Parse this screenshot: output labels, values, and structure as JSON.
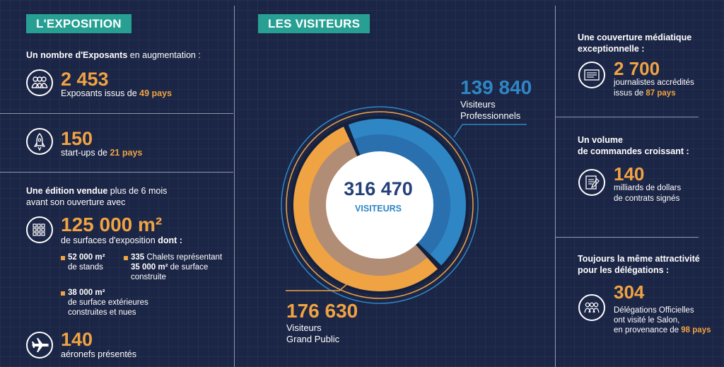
{
  "left": {
    "tag": "L'EXPOSITION",
    "exposants_heading_bold": "Un nombre d'Exposants",
    "exposants_heading_rest": " en augmentation :",
    "exposants_value": "2 453",
    "exposants_desc": "Exposants issus de ",
    "exposants_pays": "49 pays",
    "startups_value": "150",
    "startups_desc": "start-ups de ",
    "startups_pays": "21 pays",
    "edition_bold": "Une édition vendue",
    "edition_rest": " plus de 6 mois",
    "edition_line2": "avant son ouverture avec",
    "surface_value": "125 000 m²",
    "surface_desc": "de surfaces d'exposition ",
    "surface_dont": "dont :",
    "stands_value": "52 000 m²",
    "stands_desc": "de stands",
    "chalets_value": "335",
    "chalets_desc": " Chalets représentant",
    "chalets_surface": "35 000 m²",
    "chalets_surface_rest": " de surface",
    "chalets_line3": "construite",
    "ext_value": "38 000 m²",
    "ext_line1": "de surface extérieures",
    "ext_line2": "construites et nues",
    "aeronefs_value": "140",
    "aeronefs_desc": "aéronefs présentés"
  },
  "center": {
    "tag": "LES VISITEURS"
  },
  "right": {
    "media_heading": "Une couverture médiatique exceptionnelle :",
    "media_value": "2 700",
    "media_line1": "journalistes accrédités",
    "media_line2": "issus de ",
    "media_pays": "87 pays",
    "cmd_heading1": "Un volume",
    "cmd_heading2": "de commandes croissant :",
    "cmd_value": "140",
    "cmd_line1": "milliards de dollars",
    "cmd_line2": "de contrats signés",
    "deleg_heading1": "Toujours la même attractivité",
    "deleg_heading2": "pour les délégations :",
    "deleg_value": "304",
    "deleg_line1": "Délégations Officielles",
    "deleg_line2": "ont visité le Salon,",
    "deleg_line3": "en provenance de ",
    "deleg_pays": "98 pays"
  },
  "colors": {
    "background": "#1b2545",
    "accent_orange": "#f0a343",
    "teal_tag": "#27a093",
    "blue_pro": "#2f86c5",
    "brown_inner": "#b28d76",
    "total_blue": "#24407a"
  },
  "chart_data": {
    "type": "pie",
    "center_value": "316 470",
    "center_label": "VISITEURS",
    "slices": [
      {
        "value": "139 840",
        "value_num": 139840,
        "line1": "Visiteurs",
        "line2": "Professionnels",
        "color": "#2f86c5"
      },
      {
        "value": "176 630",
        "value_num": 176630,
        "line1": "Visiteurs",
        "line2": "Grand Public",
        "color": "#f0a343"
      }
    ]
  }
}
